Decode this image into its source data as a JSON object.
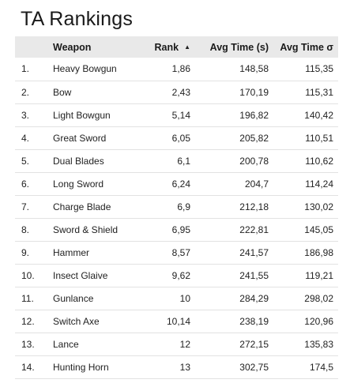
{
  "title": "TA Rankings",
  "columns": {
    "index": "",
    "weapon": "Weapon",
    "rank": "Rank",
    "avg_time": "Avg Time (s)",
    "avg_time_sigma": "Avg Time σ"
  },
  "sort": {
    "column": "rank",
    "direction": "ascending",
    "icon": "sort-ascending-icon"
  },
  "chart_data": {
    "type": "table",
    "title": "TA Rankings",
    "columns": [
      "",
      "Weapon",
      "Rank",
      "Avg Time (s)",
      "Avg Time σ"
    ],
    "rows": [
      {
        "index": "1.",
        "weapon": "Heavy Bowgun",
        "rank": "1,86",
        "avg_time": "148,58",
        "avg_time_sigma": "115,35"
      },
      {
        "index": "2.",
        "weapon": "Bow",
        "rank": "2,43",
        "avg_time": "170,19",
        "avg_time_sigma": "115,31"
      },
      {
        "index": "3.",
        "weapon": "Light Bowgun",
        "rank": "5,14",
        "avg_time": "196,82",
        "avg_time_sigma": "140,42"
      },
      {
        "index": "4.",
        "weapon": "Great Sword",
        "rank": "6,05",
        "avg_time": "205,82",
        "avg_time_sigma": "110,51"
      },
      {
        "index": "5.",
        "weapon": "Dual Blades",
        "rank": "6,1",
        "avg_time": "200,78",
        "avg_time_sigma": "110,62"
      },
      {
        "index": "6.",
        "weapon": "Long Sword",
        "rank": "6,24",
        "avg_time": "204,7",
        "avg_time_sigma": "114,24"
      },
      {
        "index": "7.",
        "weapon": "Charge Blade",
        "rank": "6,9",
        "avg_time": "212,18",
        "avg_time_sigma": "130,02"
      },
      {
        "index": "8.",
        "weapon": "Sword & Shield",
        "rank": "6,95",
        "avg_time": "222,81",
        "avg_time_sigma": "145,05"
      },
      {
        "index": "9.",
        "weapon": "Hammer",
        "rank": "8,57",
        "avg_time": "241,57",
        "avg_time_sigma": "186,98"
      },
      {
        "index": "10.",
        "weapon": "Insect Glaive",
        "rank": "9,62",
        "avg_time": "241,55",
        "avg_time_sigma": "119,21"
      },
      {
        "index": "11.",
        "weapon": "Gunlance",
        "rank": "10",
        "avg_time": "284,29",
        "avg_time_sigma": "298,02"
      },
      {
        "index": "12.",
        "weapon": "Switch Axe",
        "rank": "10,14",
        "avg_time": "238,19",
        "avg_time_sigma": "120,96"
      },
      {
        "index": "13.",
        "weapon": "Lance",
        "rank": "12",
        "avg_time": "272,15",
        "avg_time_sigma": "135,83"
      },
      {
        "index": "14.",
        "weapon": "Hunting Horn",
        "rank": "13",
        "avg_time": "302,75",
        "avg_time_sigma": "174,5"
      }
    ]
  }
}
